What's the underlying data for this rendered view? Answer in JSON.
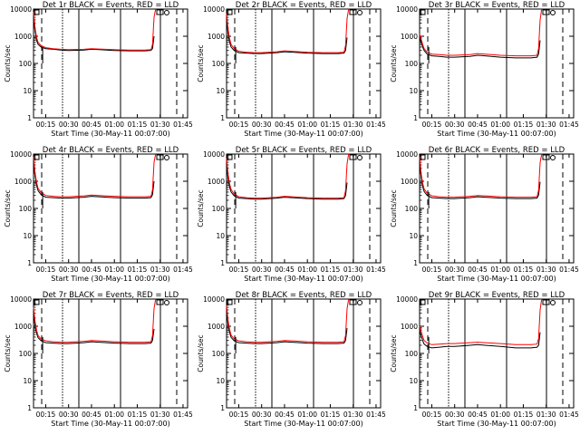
{
  "chart_data": [
    {
      "type": "line",
      "title": "Det 1r BLACK = Events, RED = LLD",
      "xlabel": "Start Time (30-May-11 00:07:00)",
      "ylabel": "Counts/sec",
      "ylog": true,
      "ylim": [
        1,
        10000
      ],
      "xlim": [
        "00:07",
        "01:48"
      ],
      "xtick_labels": [
        "00:15",
        "00:30",
        "00:45",
        "01:00",
        "01:15",
        "01:30",
        "01:45"
      ],
      "ytick_labels": [
        "1",
        "10",
        "100",
        "1000",
        "10000"
      ],
      "series": [
        {
          "color": "#000000",
          "x": [
            "00:07",
            "00:08",
            "00:09",
            "00:10",
            "00:12",
            "00:15",
            "00:20",
            "00:25",
            "00:30",
            "00:40",
            "00:45",
            "00:50",
            "01:00",
            "01:10",
            "01:20",
            "01:24",
            "01:25",
            "01:26"
          ],
          "y": [
            5000,
            1500,
            700,
            500,
            400,
            350,
            330,
            310,
            300,
            310,
            330,
            320,
            300,
            290,
            290,
            300,
            350,
            1000
          ]
        },
        {
          "color": "#ff0000",
          "x": [
            "00:07",
            "00:08",
            "00:09",
            "00:10",
            "00:12",
            "00:15",
            "00:20",
            "00:25",
            "00:30",
            "00:40",
            "00:45",
            "00:50",
            "01:00",
            "01:10",
            "01:20",
            "01:24",
            "01:25",
            "01:26",
            "01:27"
          ],
          "y": [
            8000,
            2000,
            900,
            600,
            450,
            380,
            350,
            330,
            320,
            330,
            350,
            340,
            320,
            310,
            310,
            320,
            500,
            5000,
            10000
          ]
        }
      ]
    },
    {
      "type": "line",
      "title": "Det 2r BLACK = Events, RED = LLD",
      "xlabel": "Start Time (30-May-11 00:07:00)",
      "ylabel": "Counts/sec",
      "ylog": true,
      "ylim": [
        1,
        10000
      ],
      "xlim": [
        "00:07",
        "01:48"
      ],
      "xtick_labels": [
        "00:15",
        "00:30",
        "00:45",
        "01:00",
        "01:15",
        "01:30",
        "01:45"
      ],
      "ytick_labels": [
        "1",
        "10",
        "100",
        "1000",
        "10000"
      ],
      "series": [
        {
          "color": "#000000",
          "x": [
            "00:07",
            "00:08",
            "00:09",
            "00:10",
            "00:12",
            "00:15",
            "00:20",
            "00:25",
            "00:30",
            "00:40",
            "00:45",
            "00:50",
            "01:00",
            "01:10",
            "01:20",
            "01:24",
            "01:25",
            "01:26"
          ],
          "y": [
            4000,
            1200,
            600,
            400,
            300,
            250,
            240,
            230,
            230,
            250,
            270,
            260,
            240,
            230,
            230,
            240,
            300,
            900
          ]
        },
        {
          "color": "#ff0000",
          "x": [
            "00:07",
            "00:08",
            "00:09",
            "00:10",
            "00:12",
            "00:15",
            "00:20",
            "00:25",
            "00:30",
            "00:40",
            "00:45",
            "00:50",
            "01:00",
            "01:10",
            "01:20",
            "01:24",
            "01:25",
            "01:26",
            "01:27"
          ],
          "y": [
            7000,
            1800,
            800,
            500,
            350,
            280,
            260,
            250,
            250,
            270,
            290,
            280,
            260,
            250,
            250,
            260,
            450,
            4500,
            10000
          ]
        }
      ]
    },
    {
      "type": "line",
      "title": "Det 3r BLACK = Events, RED = LLD",
      "xlabel": "Start Time (30-May-11 00:07:00)",
      "ylabel": "Counts/sec",
      "ylog": true,
      "ylim": [
        1,
        10000
      ],
      "xlim": [
        "00:07",
        "01:48"
      ],
      "xtick_labels": [
        "00:15",
        "00:30",
        "00:45",
        "01:00",
        "01:15",
        "01:30",
        "01:45"
      ],
      "ytick_labels": [
        "1",
        "10",
        "100",
        "1000",
        "10000"
      ],
      "series": [
        {
          "color": "#000000",
          "x": [
            "00:07",
            "00:08",
            "00:09",
            "00:10",
            "00:12",
            "00:15",
            "00:20",
            "00:25",
            "00:30",
            "00:40",
            "00:45",
            "00:50",
            "01:00",
            "01:10",
            "01:20",
            "01:24",
            "01:25",
            "01:26"
          ],
          "y": [
            900,
            600,
            400,
            300,
            220,
            190,
            180,
            170,
            170,
            180,
            200,
            190,
            170,
            160,
            160,
            170,
            220,
            700
          ]
        },
        {
          "color": "#ff0000",
          "x": [
            "00:07",
            "00:08",
            "00:09",
            "00:10",
            "00:12",
            "00:15",
            "00:20",
            "00:25",
            "00:30",
            "00:40",
            "00:45",
            "00:50",
            "01:00",
            "01:10",
            "01:20",
            "01:24",
            "01:25",
            "01:26",
            "01:27"
          ],
          "y": [
            1200,
            800,
            500,
            350,
            260,
            220,
            210,
            200,
            200,
            210,
            230,
            220,
            200,
            190,
            190,
            200,
            350,
            4000,
            10000
          ]
        }
      ]
    },
    {
      "type": "line",
      "title": "Det 4r BLACK = Events, RED = LLD",
      "xlabel": "Start Time (30-May-11 00:07:00)",
      "ylabel": "Counts/sec",
      "ylog": true,
      "ylim": [
        1,
        10000
      ],
      "xlim": [
        "00:07",
        "01:48"
      ],
      "xtick_labels": [
        "00:15",
        "00:30",
        "00:45",
        "01:00",
        "01:15",
        "01:30",
        "01:45"
      ],
      "ytick_labels": [
        "1",
        "10",
        "100",
        "1000",
        "10000"
      ],
      "series": [
        {
          "color": "#000000",
          "x": [
            "00:07",
            "00:08",
            "00:09",
            "00:10",
            "00:12",
            "00:15",
            "00:20",
            "00:25",
            "00:30",
            "00:40",
            "00:45",
            "00:50",
            "01:00",
            "01:10",
            "01:20",
            "01:24",
            "01:25",
            "01:26"
          ],
          "y": [
            5000,
            1500,
            700,
            450,
            320,
            260,
            250,
            240,
            240,
            260,
            280,
            270,
            250,
            240,
            240,
            250,
            320,
            1000
          ]
        },
        {
          "color": "#ff0000",
          "x": [
            "00:07",
            "00:08",
            "00:09",
            "00:10",
            "00:12",
            "00:15",
            "00:20",
            "00:25",
            "00:30",
            "00:40",
            "00:45",
            "00:50",
            "01:00",
            "01:10",
            "01:20",
            "01:24",
            "01:25",
            "01:26",
            "01:27"
          ],
          "y": [
            8000,
            2000,
            900,
            550,
            380,
            300,
            280,
            270,
            270,
            290,
            310,
            300,
            280,
            270,
            270,
            280,
            480,
            5000,
            10000
          ]
        }
      ]
    },
    {
      "type": "line",
      "title": "Det 5r BLACK = Events, RED = LLD",
      "xlabel": "Start Time (30-May-11 00:07:00)",
      "ylabel": "Counts/sec",
      "ylog": true,
      "ylim": [
        1,
        10000
      ],
      "xlim": [
        "00:07",
        "01:48"
      ],
      "xtick_labels": [
        "00:15",
        "00:30",
        "00:45",
        "01:00",
        "01:15",
        "01:30",
        "01:45"
      ],
      "ytick_labels": [
        "1",
        "10",
        "100",
        "1000",
        "10000"
      ],
      "series": [
        {
          "color": "#000000",
          "x": [
            "00:07",
            "00:08",
            "00:09",
            "00:10",
            "00:12",
            "00:15",
            "00:20",
            "00:25",
            "00:30",
            "00:40",
            "00:45",
            "00:50",
            "01:00",
            "01:10",
            "01:20",
            "01:24",
            "01:25",
            "01:26"
          ],
          "y": [
            4000,
            1200,
            600,
            400,
            290,
            240,
            230,
            220,
            220,
            240,
            260,
            250,
            230,
            220,
            220,
            230,
            300,
            900
          ]
        },
        {
          "color": "#ff0000",
          "x": [
            "00:07",
            "00:08",
            "00:09",
            "00:10",
            "00:12",
            "00:15",
            "00:20",
            "00:25",
            "00:30",
            "00:40",
            "00:45",
            "00:50",
            "01:00",
            "01:10",
            "01:20",
            "01:24",
            "01:25",
            "01:26",
            "01:27"
          ],
          "y": [
            7000,
            1800,
            800,
            500,
            340,
            270,
            250,
            240,
            240,
            260,
            280,
            270,
            250,
            240,
            240,
            250,
            450,
            4500,
            10000
          ]
        }
      ]
    },
    {
      "type": "line",
      "title": "Det 6r BLACK = Events, RED = LLD",
      "xlabel": "Start Time (30-May-11 00:07:00)",
      "ylabel": "Counts/sec",
      "ylog": true,
      "ylim": [
        1,
        10000
      ],
      "xlim": [
        "00:07",
        "01:48"
      ],
      "xtick_labels": [
        "00:15",
        "00:30",
        "00:45",
        "01:00",
        "01:15",
        "01:30",
        "01:45"
      ],
      "ytick_labels": [
        "1",
        "10",
        "100",
        "1000",
        "10000"
      ],
      "series": [
        {
          "color": "#000000",
          "x": [
            "00:07",
            "00:08",
            "00:09",
            "00:10",
            "00:12",
            "00:15",
            "00:20",
            "00:25",
            "00:30",
            "00:40",
            "00:45",
            "00:50",
            "01:00",
            "01:10",
            "01:20",
            "01:24",
            "01:25",
            "01:26"
          ],
          "y": [
            5000,
            1400,
            650,
            420,
            300,
            250,
            240,
            230,
            230,
            250,
            270,
            260,
            240,
            230,
            230,
            240,
            310,
            950
          ]
        },
        {
          "color": "#ff0000",
          "x": [
            "00:07",
            "00:08",
            "00:09",
            "00:10",
            "00:12",
            "00:15",
            "00:20",
            "00:25",
            "00:30",
            "00:40",
            "00:45",
            "00:50",
            "01:00",
            "01:10",
            "01:20",
            "01:24",
            "01:25",
            "01:26",
            "01:27"
          ],
          "y": [
            8000,
            1900,
            850,
            520,
            360,
            290,
            270,
            260,
            260,
            280,
            300,
            290,
            270,
            260,
            260,
            270,
            460,
            4800,
            10000
          ]
        }
      ]
    },
    {
      "type": "line",
      "title": "Det 7r BLACK = Events, RED = LLD",
      "xlabel": "Start Time (30-May-11 00:07:00)",
      "ylabel": "Counts/sec",
      "ylog": true,
      "ylim": [
        1,
        10000
      ],
      "xlim": [
        "00:07",
        "01:48"
      ],
      "xtick_labels": [
        "00:15",
        "00:30",
        "00:45",
        "01:00",
        "01:15",
        "01:30",
        "01:45"
      ],
      "ytick_labels": [
        "1",
        "10",
        "100",
        "1000",
        "10000"
      ],
      "series": [
        {
          "color": "#000000",
          "x": [
            "00:07",
            "00:08",
            "00:09",
            "00:10",
            "00:12",
            "00:15",
            "00:20",
            "00:25",
            "00:30",
            "00:40",
            "00:45",
            "00:50",
            "01:00",
            "01:10",
            "01:20",
            "01:24",
            "01:25",
            "01:26"
          ],
          "y": [
            3000,
            1000,
            550,
            380,
            290,
            250,
            240,
            230,
            230,
            250,
            270,
            260,
            240,
            230,
            230,
            240,
            300,
            800
          ]
        },
        {
          "color": "#ff0000",
          "x": [
            "00:07",
            "00:08",
            "00:09",
            "00:10",
            "00:12",
            "00:15",
            "00:20",
            "00:25",
            "00:30",
            "00:40",
            "00:45",
            "00:50",
            "01:00",
            "01:10",
            "01:20",
            "01:24",
            "01:25",
            "01:26",
            "01:27"
          ],
          "y": [
            5000,
            1500,
            700,
            450,
            340,
            290,
            270,
            260,
            260,
            280,
            300,
            290,
            270,
            260,
            260,
            270,
            450,
            4500,
            10000
          ]
        }
      ]
    },
    {
      "type": "line",
      "title": "Det 8r BLACK = Events, RED = LLD",
      "xlabel": "Start Time (30-May-11 00:07:00)",
      "ylabel": "Counts/sec",
      "ylog": true,
      "ylim": [
        1,
        10000
      ],
      "xlim": [
        "00:07",
        "01:48"
      ],
      "xtick_labels": [
        "00:15",
        "00:30",
        "00:45",
        "01:00",
        "01:15",
        "01:30",
        "01:45"
      ],
      "ytick_labels": [
        "1",
        "10",
        "100",
        "1000",
        "10000"
      ],
      "series": [
        {
          "color": "#000000",
          "x": [
            "00:07",
            "00:08",
            "00:09",
            "00:10",
            "00:12",
            "00:15",
            "00:20",
            "00:25",
            "00:30",
            "00:40",
            "00:45",
            "00:50",
            "01:00",
            "01:10",
            "01:20",
            "01:24",
            "01:25",
            "01:26"
          ],
          "y": [
            3500,
            1100,
            580,
            390,
            290,
            250,
            240,
            230,
            230,
            250,
            270,
            260,
            240,
            230,
            230,
            240,
            300,
            850
          ]
        },
        {
          "color": "#ff0000",
          "x": [
            "00:07",
            "00:08",
            "00:09",
            "00:10",
            "00:12",
            "00:15",
            "00:20",
            "00:25",
            "00:30",
            "00:40",
            "00:45",
            "00:50",
            "01:00",
            "01:10",
            "01:20",
            "01:24",
            "01:25",
            "01:26",
            "01:27"
          ],
          "y": [
            6000,
            1600,
            750,
            470,
            340,
            290,
            270,
            260,
            260,
            280,
            300,
            290,
            270,
            260,
            260,
            270,
            450,
            4500,
            10000
          ]
        }
      ]
    },
    {
      "type": "line",
      "title": "Det 9r BLACK = Events, RED = LLD",
      "xlabel": "Start Time (30-May-11 00:07:00)",
      "ylabel": "Counts/sec",
      "ylog": true,
      "ylim": [
        1,
        10000
      ],
      "xlim": [
        "00:07",
        "01:48"
      ],
      "xtick_labels": [
        "00:15",
        "00:30",
        "00:45",
        "01:00",
        "01:15",
        "01:30",
        "01:45"
      ],
      "ytick_labels": [
        "1",
        "10",
        "100",
        "1000",
        "10000"
      ],
      "series": [
        {
          "color": "#000000",
          "x": [
            "00:07",
            "00:08",
            "00:09",
            "00:10",
            "00:12",
            "00:15",
            "00:20",
            "00:25",
            "00:30",
            "00:40",
            "00:45",
            "00:50",
            "01:00",
            "01:10",
            "01:20",
            "01:24",
            "01:25",
            "01:26"
          ],
          "y": [
            700,
            450,
            300,
            220,
            180,
            160,
            170,
            180,
            180,
            200,
            210,
            200,
            180,
            160,
            160,
            170,
            200,
            600
          ]
        },
        {
          "color": "#ff0000",
          "x": [
            "00:07",
            "00:08",
            "00:09",
            "00:10",
            "00:12",
            "00:15",
            "00:20",
            "00:25",
            "00:30",
            "00:40",
            "00:45",
            "00:50",
            "01:00",
            "01:10",
            "01:20",
            "01:24",
            "01:25",
            "01:26",
            "01:27"
          ],
          "y": [
            1000,
            650,
            420,
            300,
            240,
            210,
            220,
            230,
            230,
            250,
            260,
            250,
            230,
            210,
            210,
            220,
            350,
            4000,
            10000
          ]
        }
      ]
    }
  ]
}
